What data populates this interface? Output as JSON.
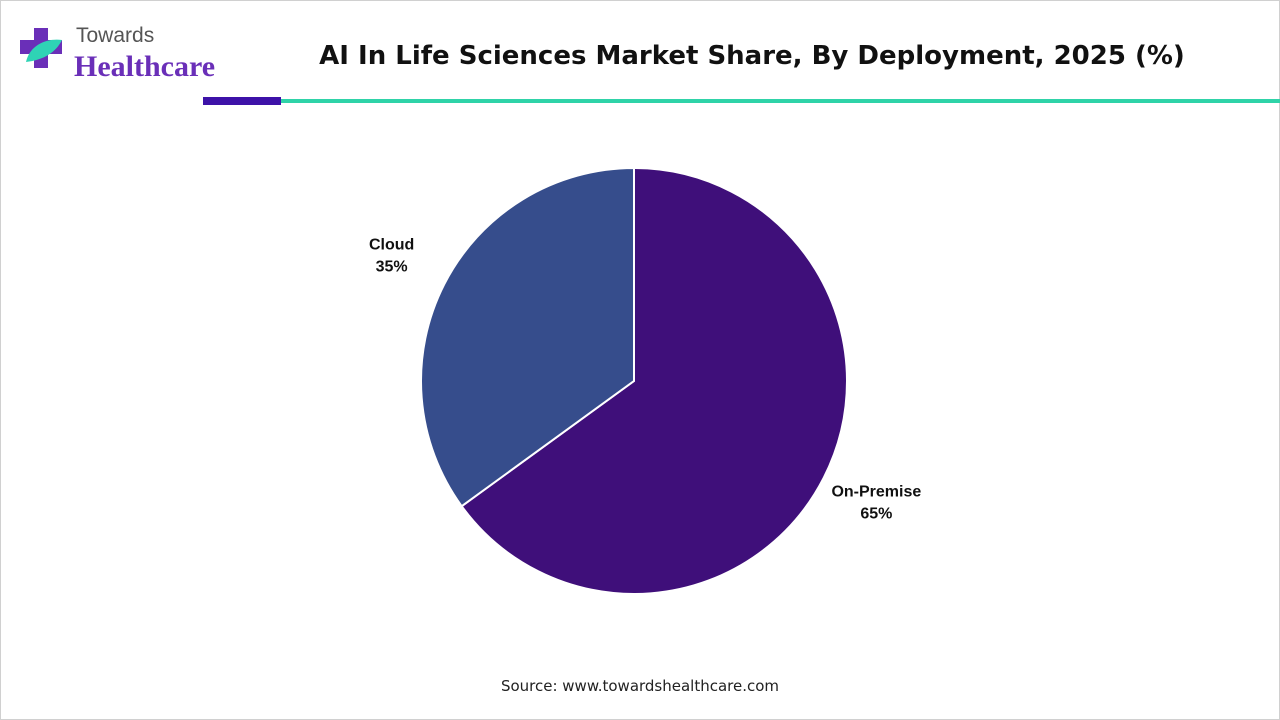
{
  "brand": {
    "line1": "Towards",
    "line2": "Healthcare"
  },
  "chart_data": {
    "type": "pie",
    "title": "AI In Life Sciences Market Share, By Deployment, 2025 (%)",
    "categories": [
      "On-Premise",
      "Cloud"
    ],
    "values": [
      65,
      35
    ],
    "value_labels": [
      "65%",
      "35%"
    ],
    "colors": [
      "#3f0f7a",
      "#364d8c"
    ]
  },
  "source": "Source: www.towardshealthcare.com"
}
